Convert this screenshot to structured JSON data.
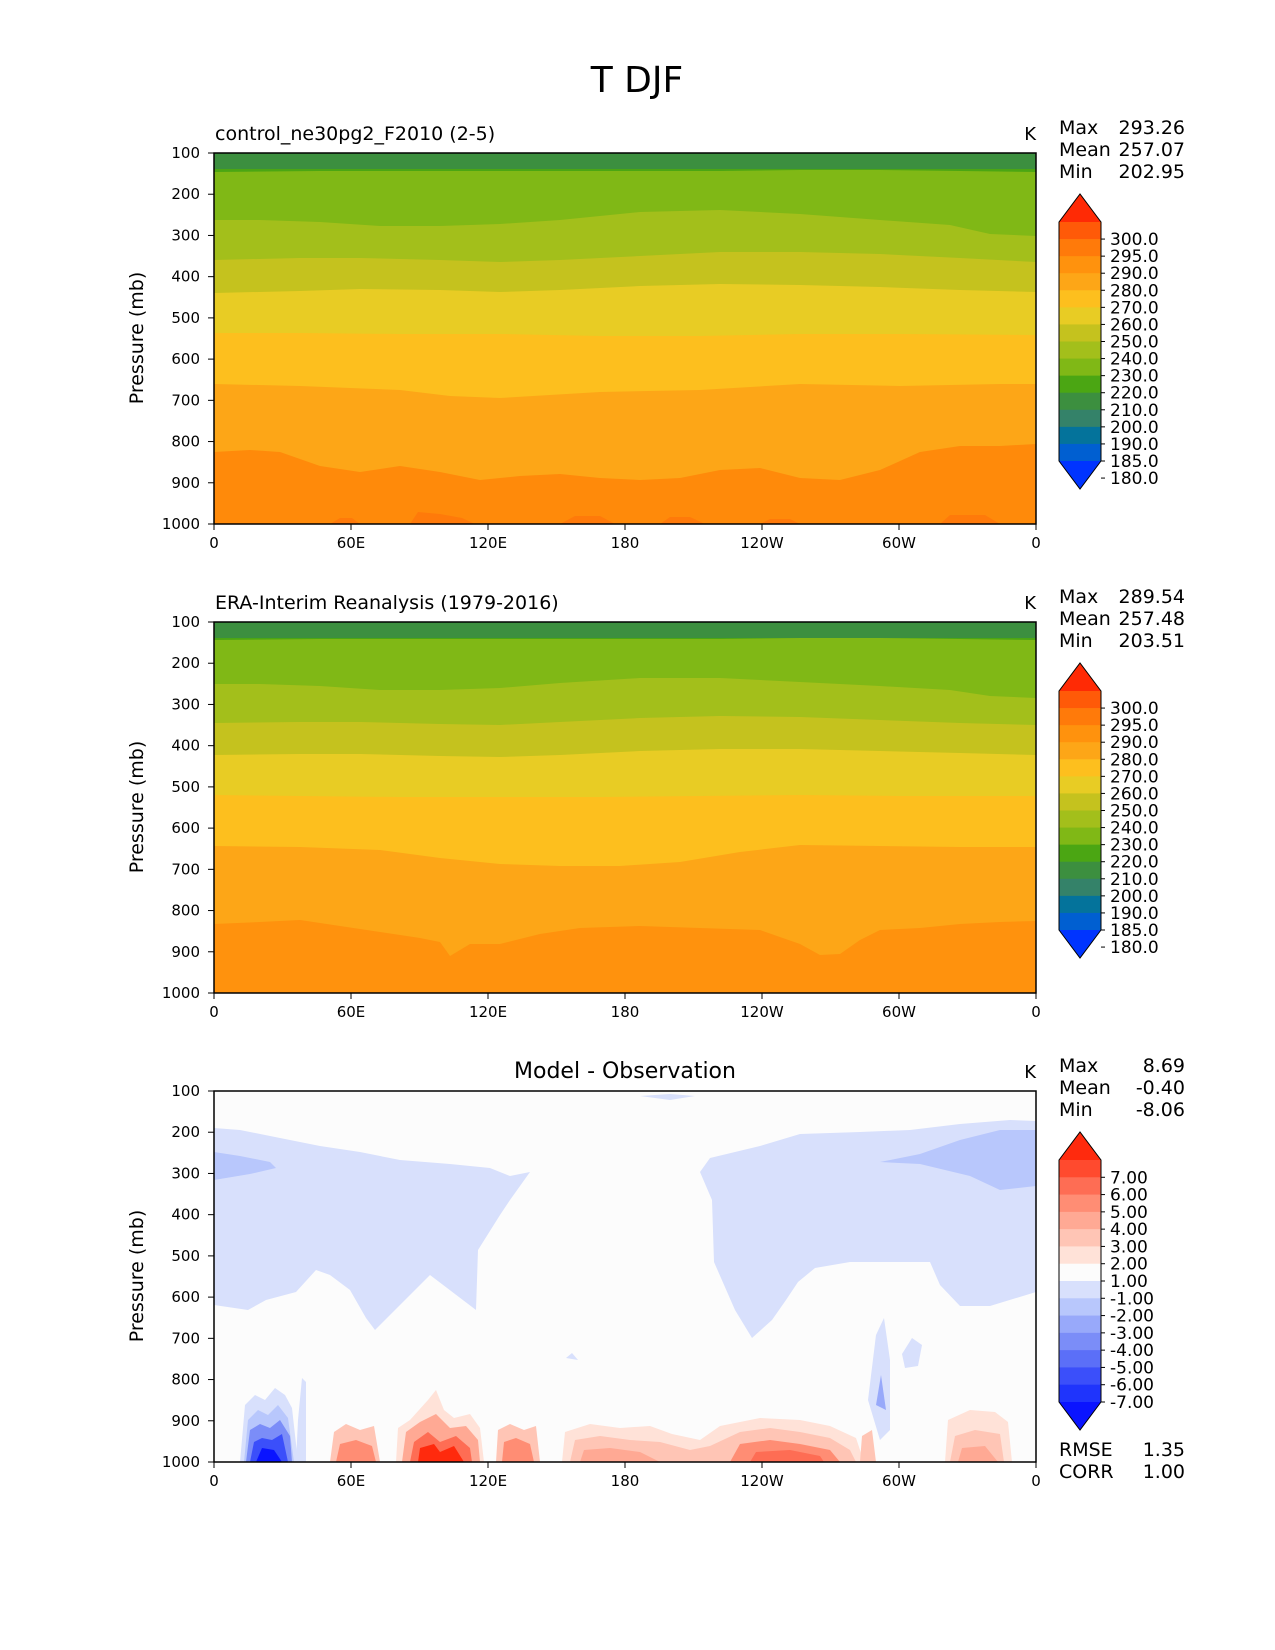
{
  "figure": {
    "suptitle": "T DJF"
  },
  "panels": [
    {
      "id": "test",
      "left_title": "control_ne30pg2_F2010 (2-5)",
      "center_title": "",
      "units": "K",
      "stats": [
        {
          "label": "Max",
          "value": "293.26"
        },
        {
          "label": "Mean",
          "value": "257.07"
        },
        {
          "label": "Min",
          "value": "202.95"
        }
      ],
      "extra_stats": []
    },
    {
      "id": "reference",
      "left_title": "ERA-Interim Reanalysis (1979-2016)",
      "center_title": "",
      "units": "K",
      "stats": [
        {
          "label": "Max",
          "value": "289.54"
        },
        {
          "label": "Mean",
          "value": "257.48"
        },
        {
          "label": "Min",
          "value": "203.51"
        }
      ],
      "extra_stats": []
    },
    {
      "id": "diff",
      "left_title": "",
      "center_title": "Model - Observation",
      "units": "K",
      "stats": [
        {
          "label": "Max",
          "value": "8.69"
        },
        {
          "label": "Mean",
          "value": "-0.40"
        },
        {
          "label": "Min",
          "value": "-8.06"
        }
      ],
      "extra_stats": [
        {
          "label": "RMSE",
          "value": "1.35"
        },
        {
          "label": "CORR",
          "value": "1.00"
        }
      ]
    }
  ],
  "axes": {
    "ylabel": "Pressure (mb)",
    "y_ticks": [
      "100",
      "200",
      "300",
      "400",
      "500",
      "600",
      "700",
      "800",
      "900",
      "1000"
    ],
    "x_ticks": [
      "0",
      "60E",
      "120E",
      "180",
      "120W",
      "60W",
      "0"
    ]
  },
  "colorbars": {
    "temperature": {
      "labels": [
        "300.0",
        "295.0",
        "290.0",
        "280.0",
        "270.0",
        "260.0",
        "250.0",
        "240.0",
        "230.0",
        "220.0",
        "210.0",
        "200.0",
        "190.0",
        "185.0",
        "180.0"
      ],
      "colors": [
        "#ff2a05",
        "#ff5a08",
        "#ff7a0a",
        "#ff920d",
        "#fda617",
        "#fdbf1e",
        "#e8cc24",
        "#c5c21e",
        "#a3bf1b",
        "#80b816",
        "#4ba613",
        "#3c8f3f",
        "#348269",
        "#04739b",
        "#005fd1",
        "#0034ff"
      ]
    },
    "difference": {
      "labels": [
        "7.00",
        "6.00",
        "5.00",
        "4.00",
        "3.00",
        "2.00",
        "1.00",
        "-1.00",
        "-2.00",
        "-3.00",
        "-4.00",
        "-5.00",
        "-6.00",
        "-7.00"
      ],
      "colors": [
        "#ff2a0d",
        "#ff4a2e",
        "#fe6d54",
        "#ff8d74",
        "#ffa994",
        "#ffc5b5",
        "#ffe2d8",
        "#fcfcfc",
        "#d8e0fc",
        "#b8c7fc",
        "#98a9fa",
        "#7b8df8",
        "#5b6ff8",
        "#3b4ffa",
        "#1f34fc",
        "#0a14ff"
      ]
    }
  },
  "chart_data": [
    {
      "type": "heatmap",
      "title": "control_ne30pg2_F2010 (2-5)",
      "ylabel": "Pressure (mb)",
      "units": "K",
      "x_domain": "longitude",
      "x_ticks": [
        "0",
        "60E",
        "120E",
        "180",
        "120W",
        "60W",
        "0"
      ],
      "y_ticks": [
        100,
        200,
        300,
        400,
        500,
        600,
        700,
        800,
        900,
        1000
      ],
      "ylim": [
        1000,
        100
      ],
      "levels": [
        180,
        185,
        190,
        200,
        210,
        220,
        230,
        240,
        250,
        260,
        270,
        280,
        290,
        295,
        300
      ],
      "stats": {
        "max": 293.26,
        "mean": 257.07,
        "min": 202.95
      },
      "contour_boundaries_approx": [
        {
          "level": 210,
          "pressure_mb": 140
        },
        {
          "level": 220,
          "pressure_mb": 220
        },
        {
          "level": 230,
          "pressure_mb": 280
        },
        {
          "level": 240,
          "pressure_mb": 345
        },
        {
          "level": 250,
          "pressure_mb": 420
        },
        {
          "level": 260,
          "pressure_mb": 535
        },
        {
          "level": 270,
          "pressure_mb": 660
        },
        {
          "level": 280,
          "pressure_mb": 860
        },
        {
          "level": 290,
          "pressure_mb": 990
        }
      ]
    },
    {
      "type": "heatmap",
      "title": "ERA-Interim Reanalysis (1979-2016)",
      "ylabel": "Pressure (mb)",
      "units": "K",
      "x_domain": "longitude",
      "x_ticks": [
        "0",
        "60E",
        "120E",
        "180",
        "120W",
        "60W",
        "0"
      ],
      "y_ticks": [
        100,
        200,
        300,
        400,
        500,
        600,
        700,
        800,
        900,
        1000
      ],
      "ylim": [
        1000,
        100
      ],
      "levels": [
        180,
        185,
        190,
        200,
        210,
        220,
        230,
        240,
        250,
        260,
        270,
        280,
        290,
        295,
        300
      ],
      "stats": {
        "max": 289.54,
        "mean": 257.48,
        "min": 203.51
      },
      "contour_boundaries_approx": [
        {
          "level": 210,
          "pressure_mb": 140
        },
        {
          "level": 220,
          "pressure_mb": 220
        },
        {
          "level": 230,
          "pressure_mb": 280
        },
        {
          "level": 240,
          "pressure_mb": 345
        },
        {
          "level": 250,
          "pressure_mb": 420
        },
        {
          "level": 260,
          "pressure_mb": 535
        },
        {
          "level": 270,
          "pressure_mb": 655
        },
        {
          "level": 280,
          "pressure_mb": 860
        }
      ]
    },
    {
      "type": "heatmap",
      "title": "Model - Observation",
      "ylabel": "Pressure (mb)",
      "units": "K",
      "x_domain": "longitude",
      "x_ticks": [
        "0",
        "60E",
        "120E",
        "180",
        "120W",
        "60W",
        "0"
      ],
      "y_ticks": [
        100,
        200,
        300,
        400,
        500,
        600,
        700,
        800,
        900,
        1000
      ],
      "ylim": [
        1000,
        100
      ],
      "levels": [
        -7,
        -6,
        -5,
        -4,
        -3,
        -2,
        -1,
        1,
        2,
        3,
        4,
        5,
        6,
        7
      ],
      "stats": {
        "max": 8.69,
        "mean": -0.4,
        "min": -8.06,
        "rmse": 1.35,
        "corr": 1.0
      },
      "features_approx": [
        {
          "region": "upper troposphere, 0-110E and 150W-0",
          "pressure_mb": [
            200,
            600
          ],
          "value_range": [
            -2,
            -1
          ]
        },
        {
          "region": "near 15E and 15W at 300 mb",
          "value_range": [
            -3,
            -2
          ]
        },
        {
          "region": "surface near 15-35E",
          "pressure_mb": [
            900,
            1000
          ],
          "value_range": [
            -8,
            -2
          ]
        },
        {
          "region": "surface near 85-115E",
          "pressure_mb": [
            850,
            1000
          ],
          "value_range": [
            2,
            8
          ]
        },
        {
          "region": "surface 150E-60W",
          "pressure_mb": [
            900,
            1000
          ],
          "value_range": [
            1,
            4
          ]
        }
      ]
    }
  ]
}
